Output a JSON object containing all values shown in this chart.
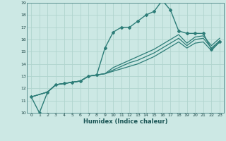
{
  "xlabel": "Humidex (Indice chaleur)",
  "bg_color": "#cce8e4",
  "grid_color": "#b0d4ce",
  "line_color": "#2d7d78",
  "xlim": [
    -0.5,
    23.5
  ],
  "ylim": [
    10,
    19
  ],
  "xticks": [
    0,
    1,
    2,
    3,
    4,
    5,
    6,
    7,
    8,
    9,
    10,
    11,
    12,
    13,
    14,
    15,
    16,
    17,
    18,
    19,
    20,
    21,
    22,
    23
  ],
  "yticks": [
    10,
    11,
    12,
    13,
    14,
    15,
    16,
    17,
    18,
    19
  ],
  "line_main": {
    "x": [
      0,
      1,
      2,
      3,
      4,
      5,
      6,
      7,
      8,
      9,
      10,
      11,
      12,
      13,
      14,
      15,
      16,
      17,
      18,
      19,
      20,
      21,
      22,
      23
    ],
    "y": [
      11.3,
      10.0,
      11.7,
      12.3,
      12.4,
      12.5,
      12.6,
      13.0,
      13.1,
      15.3,
      16.6,
      17.0,
      17.0,
      17.5,
      18.0,
      18.3,
      19.2,
      18.4,
      16.7,
      16.5,
      16.5,
      16.5,
      15.2,
      15.8
    ]
  },
  "lines_secondary": [
    {
      "x": [
        0,
        2,
        3,
        4,
        5,
        6,
        7,
        8,
        9,
        10,
        11,
        12,
        13,
        14,
        15,
        16,
        17,
        18,
        19,
        20,
        21,
        22,
        23
      ],
      "y": [
        11.3,
        11.7,
        12.3,
        12.4,
        12.5,
        12.6,
        13.0,
        13.1,
        13.2,
        13.4,
        13.6,
        13.8,
        14.0,
        14.3,
        14.6,
        15.0,
        15.4,
        15.8,
        15.3,
        15.7,
        15.8,
        15.1,
        15.8
      ]
    },
    {
      "x": [
        0,
        2,
        3,
        4,
        5,
        6,
        7,
        8,
        9,
        10,
        11,
        12,
        13,
        14,
        15,
        16,
        17,
        18,
        19,
        20,
        21,
        22,
        23
      ],
      "y": [
        11.3,
        11.7,
        12.3,
        12.4,
        12.5,
        12.6,
        13.0,
        13.1,
        13.2,
        13.5,
        13.8,
        14.1,
        14.3,
        14.6,
        14.9,
        15.3,
        15.7,
        16.1,
        15.5,
        16.0,
        16.1,
        15.3,
        15.9
      ]
    },
    {
      "x": [
        0,
        2,
        3,
        4,
        5,
        6,
        7,
        8,
        9,
        10,
        11,
        12,
        13,
        14,
        15,
        16,
        17,
        18,
        19,
        20,
        21,
        22,
        23
      ],
      "y": [
        11.3,
        11.7,
        12.3,
        12.4,
        12.5,
        12.6,
        13.0,
        13.1,
        13.2,
        13.7,
        14.0,
        14.3,
        14.6,
        14.9,
        15.2,
        15.6,
        16.0,
        16.4,
        15.7,
        16.2,
        16.3,
        15.5,
        16.1
      ]
    }
  ]
}
